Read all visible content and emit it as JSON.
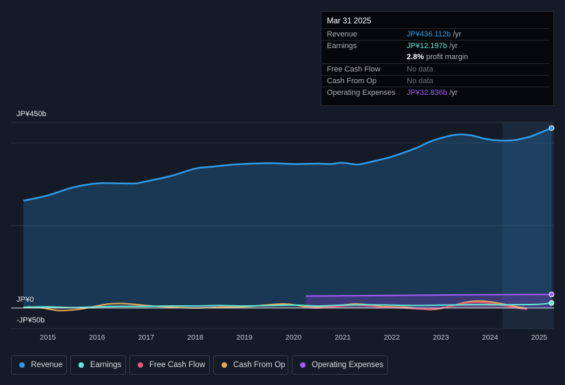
{
  "tooltip": {
    "date": "Mar 31 2025",
    "rows": [
      {
        "label": "Revenue",
        "value": "JP¥436.112b",
        "unit": " /yr",
        "color": "#2f9be6"
      },
      {
        "label": "Earnings",
        "value": "JP¥12.197b",
        "unit": " /yr",
        "color": "#5de8d8"
      },
      {
        "label": "",
        "value": "2.8%",
        "unit": " profit margin",
        "color": "#ffffff"
      },
      {
        "label": "Free Cash Flow",
        "value": "No data",
        "unit": "",
        "color": "#6c727b"
      },
      {
        "label": "Cash From Op",
        "value": "No data",
        "unit": "",
        "color": "#6c727b"
      },
      {
        "label": "Operating Expenses",
        "value": "JP¥32.836b",
        "unit": " /yr",
        "color": "#a25bf5"
      }
    ]
  },
  "chart_data": {
    "type": "area",
    "y_axis_labels": {
      "top": "JP¥450b",
      "zero": "JP¥0",
      "bottom": "-JP¥50b"
    },
    "ylim": [
      -50,
      450
    ],
    "xlim": [
      2014.25,
      2025.3
    ],
    "x_ticks": [
      "2015",
      "2016",
      "2017",
      "2018",
      "2019",
      "2020",
      "2021",
      "2022",
      "2023",
      "2024",
      "2025"
    ],
    "forecast_start": 2024.25,
    "series": [
      {
        "name": "Revenue",
        "color": "#2f9be6",
        "points": [
          [
            2014.5,
            260
          ],
          [
            2015.0,
            273
          ],
          [
            2015.5,
            292
          ],
          [
            2016.0,
            302
          ],
          [
            2016.5,
            302
          ],
          [
            2016.8,
            302
          ],
          [
            2017.0,
            307
          ],
          [
            2017.5,
            320
          ],
          [
            2018.0,
            338
          ],
          [
            2018.3,
            342
          ],
          [
            2018.8,
            348
          ],
          [
            2019.5,
            351
          ],
          [
            2020.0,
            349
          ],
          [
            2020.5,
            350
          ],
          [
            2020.75,
            349
          ],
          [
            2021.0,
            352
          ],
          [
            2021.3,
            348
          ],
          [
            2021.6,
            355
          ],
          [
            2022.0,
            367
          ],
          [
            2022.5,
            388
          ],
          [
            2022.75,
            402
          ],
          [
            2023.0,
            412
          ],
          [
            2023.3,
            420
          ],
          [
            2023.6,
            419
          ],
          [
            2023.9,
            410
          ],
          [
            2024.2,
            406
          ],
          [
            2024.5,
            407
          ],
          [
            2024.8,
            415
          ],
          [
            2025.0,
            424
          ],
          [
            2025.25,
            436.112
          ]
        ]
      },
      {
        "name": "Earnings",
        "color": "#5de8d8",
        "points": [
          [
            2014.5,
            2
          ],
          [
            2015.0,
            3
          ],
          [
            2015.5,
            1
          ],
          [
            2016.0,
            3
          ],
          [
            2016.5,
            4
          ],
          [
            2017.0,
            4
          ],
          [
            2017.5,
            5
          ],
          [
            2018.0,
            5
          ],
          [
            2018.5,
            6
          ],
          [
            2019.0,
            5
          ],
          [
            2019.5,
            6
          ],
          [
            2020.0,
            7
          ],
          [
            2020.5,
            5
          ],
          [
            2021.0,
            7
          ],
          [
            2021.5,
            8
          ],
          [
            2022.0,
            7
          ],
          [
            2022.5,
            6
          ],
          [
            2023.0,
            7
          ],
          [
            2023.5,
            8
          ],
          [
            2024.0,
            8
          ],
          [
            2024.5,
            8
          ],
          [
            2025.0,
            9
          ],
          [
            2025.25,
            12.197
          ]
        ]
      },
      {
        "name": "Free Cash Flow",
        "color": "#e0577e",
        "points": [
          [
            2020.25,
            1
          ],
          [
            2020.5,
            0
          ],
          [
            2020.75,
            2
          ],
          [
            2021.0,
            5
          ],
          [
            2021.25,
            8
          ],
          [
            2021.5,
            6
          ],
          [
            2021.75,
            2
          ],
          [
            2022.0,
            1
          ],
          [
            2022.25,
            0
          ],
          [
            2022.5,
            -2
          ],
          [
            2022.8,
            -3
          ],
          [
            2023.0,
            0
          ],
          [
            2023.25,
            6
          ],
          [
            2023.5,
            12
          ],
          [
            2023.75,
            14
          ],
          [
            2024.0,
            11
          ],
          [
            2024.25,
            7
          ],
          [
            2024.5,
            1
          ],
          [
            2024.75,
            -3
          ]
        ]
      },
      {
        "name": "Cash From Op",
        "color": "#e9a85b",
        "points": [
          [
            2014.6,
            3
          ],
          [
            2014.9,
            0
          ],
          [
            2015.2,
            -6
          ],
          [
            2015.5,
            -5
          ],
          [
            2015.7,
            -2
          ],
          [
            2016.0,
            5
          ],
          [
            2016.25,
            10
          ],
          [
            2016.5,
            11
          ],
          [
            2016.75,
            9
          ],
          [
            2017.0,
            6
          ],
          [
            2017.5,
            2
          ],
          [
            2018.0,
            0
          ],
          [
            2018.5,
            2
          ],
          [
            2019.0,
            3
          ],
          [
            2019.5,
            8
          ],
          [
            2019.8,
            10
          ],
          [
            2020.0,
            8
          ],
          [
            2020.25,
            3
          ],
          [
            2020.5,
            2
          ],
          [
            2020.75,
            4
          ],
          [
            2021.0,
            7
          ],
          [
            2021.25,
            10
          ],
          [
            2021.5,
            8
          ],
          [
            2021.75,
            4
          ],
          [
            2022.0,
            3
          ],
          [
            2022.25,
            2
          ],
          [
            2022.5,
            -1
          ],
          [
            2022.8,
            -4
          ],
          [
            2023.0,
            -1
          ],
          [
            2023.25,
            6
          ],
          [
            2023.5,
            14
          ],
          [
            2023.75,
            17
          ],
          [
            2024.0,
            15
          ],
          [
            2024.25,
            10
          ],
          [
            2024.5,
            4
          ],
          [
            2024.75,
            -1
          ]
        ]
      },
      {
        "name": "Operating Expenses",
        "color": "#a25bf5",
        "points": [
          [
            2020.25,
            29
          ],
          [
            2021.0,
            29.5
          ],
          [
            2022.0,
            30.5
          ],
          [
            2023.0,
            31.5
          ],
          [
            2024.0,
            32.3
          ],
          [
            2025.25,
            32.836
          ]
        ]
      }
    ]
  },
  "legend": [
    {
      "label": "Revenue",
      "color": "#2f9be6"
    },
    {
      "label": "Earnings",
      "color": "#5de8d8"
    },
    {
      "label": "Free Cash Flow",
      "color": "#e0577e"
    },
    {
      "label": "Cash From Op",
      "color": "#e9a85b"
    },
    {
      "label": "Operating Expenses",
      "color": "#a25bf5"
    }
  ]
}
